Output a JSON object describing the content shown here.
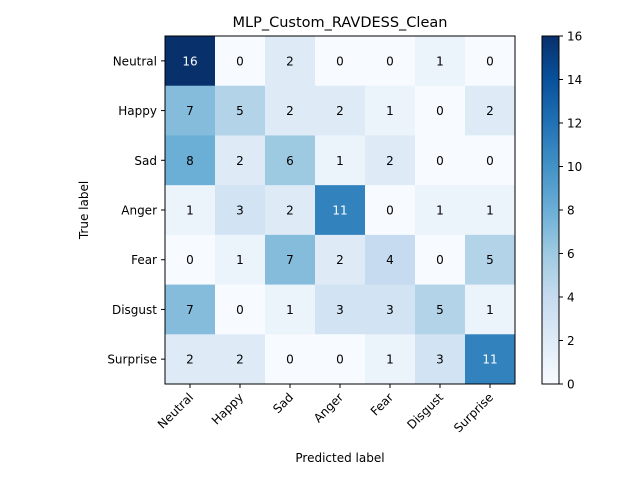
{
  "chart_data": {
    "type": "heatmap",
    "title": "MLP_Custom_RAVDESS_Clean",
    "xlabel": "Predicted label",
    "ylabel": "True label",
    "x_categories": [
      "Neutral",
      "Happy",
      "Sad",
      "Anger",
      "Fear",
      "Disgust",
      "Surprise"
    ],
    "y_categories": [
      "Neutral",
      "Happy",
      "Sad",
      "Anger",
      "Fear",
      "Disgust",
      "Surprise"
    ],
    "matrix": [
      [
        16,
        0,
        2,
        0,
        0,
        1,
        0
      ],
      [
        7,
        5,
        2,
        2,
        1,
        0,
        2
      ],
      [
        8,
        2,
        6,
        1,
        2,
        0,
        0
      ],
      [
        1,
        3,
        2,
        11,
        0,
        1,
        1
      ],
      [
        0,
        1,
        7,
        2,
        4,
        0,
        5
      ],
      [
        7,
        0,
        1,
        3,
        3,
        5,
        1
      ],
      [
        2,
        2,
        0,
        0,
        1,
        3,
        11
      ]
    ],
    "colorbar": {
      "min": 0,
      "max": 16,
      "ticks": [
        0,
        2,
        4,
        6,
        8,
        10,
        12,
        14,
        16
      ],
      "colormap": "Blues",
      "low_color": "#f7fbff",
      "high_color": "#08306b"
    },
    "grid": false
  }
}
